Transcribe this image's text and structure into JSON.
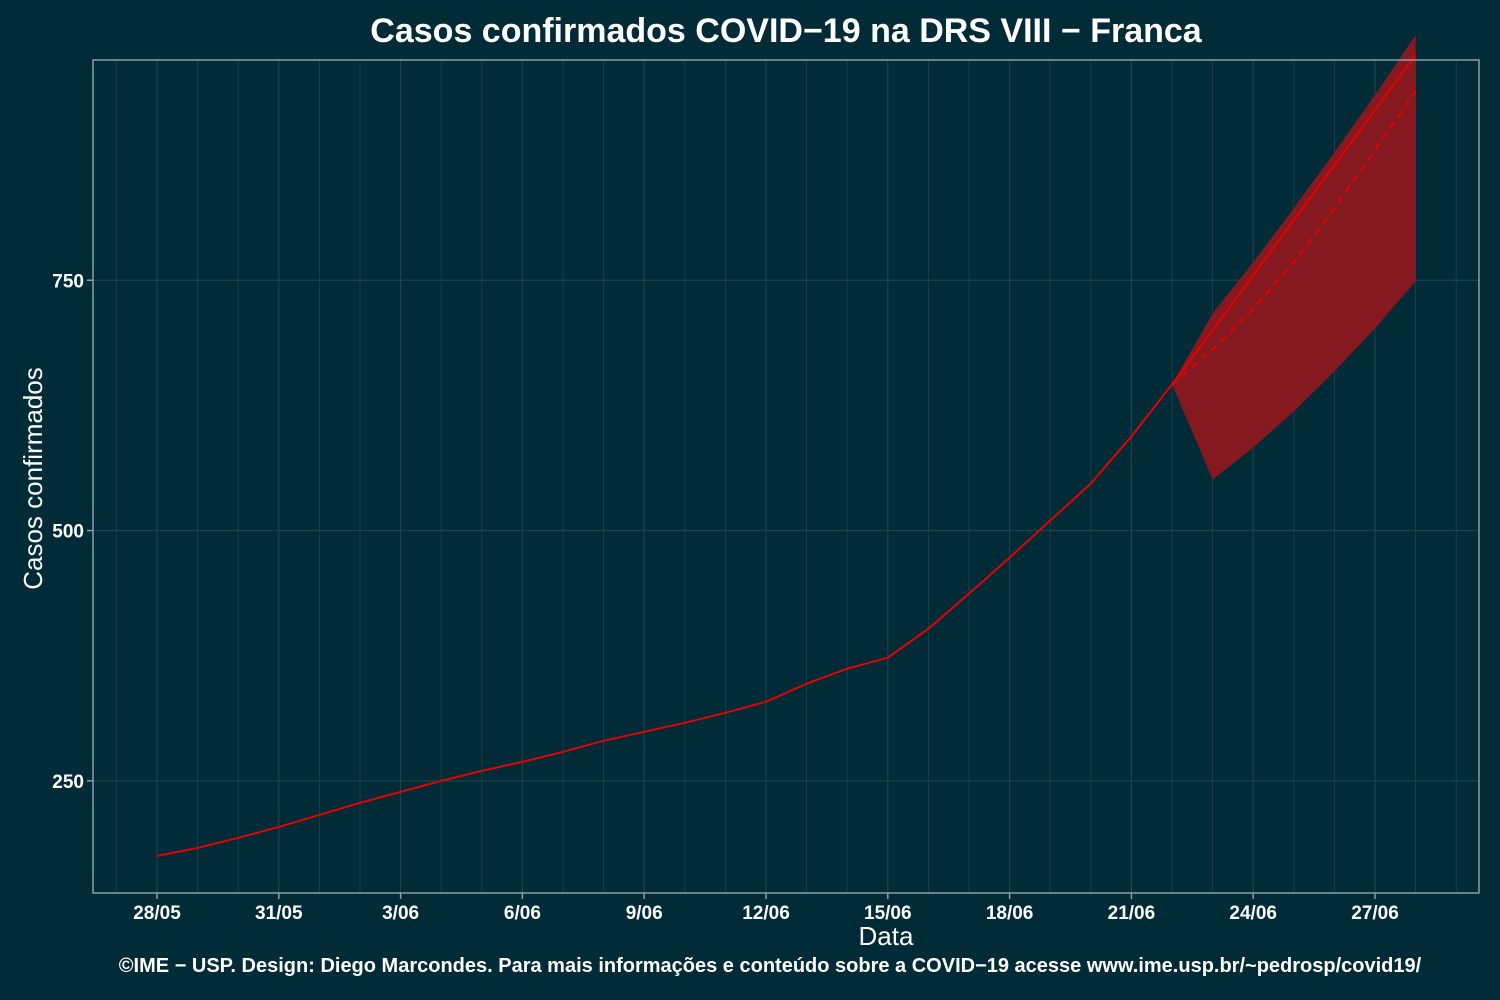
{
  "chart_data": {
    "type": "line",
    "title": "Casos confirmados COVID−19 na DRS VIII − Franca",
    "xlabel": "Data",
    "ylabel": "Casos confirmados",
    "footer": "©IME − USP. Design: Diego Marcondes. Para mais informações e conteúdo sobre a COVID−19 acesse www.ime.usp.br/~pedrosp/covid19/",
    "x_tick_labels": [
      "28/05",
      "31/05",
      "3/06",
      "6/06",
      "9/06",
      "12/06",
      "15/06",
      "18/06",
      "21/06",
      "24/06",
      "27/06"
    ],
    "y_ticks": [
      250,
      500,
      750
    ],
    "ylim": [
      138,
      970
    ],
    "grid": true,
    "colors": {
      "background": "#022b38",
      "line": "#e60000",
      "band": "#861820",
      "grid": "#1b4350",
      "frame": "#8aa0a6"
    },
    "series": [
      {
        "x": [
          "28/05",
          "29/05",
          "30/05",
          "31/05",
          "1/06",
          "2/06",
          "3/06",
          "4/06",
          "5/06",
          "6/06",
          "7/06",
          "8/06",
          "9/06",
          "10/06",
          "11/06",
          "12/06",
          "13/06",
          "14/06",
          "15/06",
          "16/06",
          "17/06",
          "18/06",
          "19/06",
          "20/06",
          "21/06",
          "22/06"
        ],
        "values": [
          175,
          183,
          193,
          204,
          216,
          228,
          239,
          250,
          260,
          269,
          279,
          290,
          299,
          308,
          318,
          329,
          347,
          362,
          373,
          402,
          437,
          473,
          510,
          547,
          594,
          646
        ]
      },
      {
        "style": "solid",
        "x": [
          "22/06",
          "23/06",
          "24/06",
          "25/06",
          "26/06",
          "27/06",
          "28/06"
        ],
        "values": [
          646,
          700,
          755,
          810,
          865,
          920,
          975
        ]
      },
      {
        "style": "dashed",
        "x": [
          "22/06",
          "23/06",
          "24/06",
          "25/06",
          "26/06",
          "27/06",
          "28/06"
        ],
        "values": [
          646,
          681,
          722,
          768,
          822,
          880,
          939
        ]
      }
    ],
    "band": {
      "x": [
        "22/06",
        "23/06",
        "24/06",
        "25/06",
        "26/06",
        "27/06",
        "28/06"
      ],
      "lower": [
        646,
        551,
        583,
        619,
        659,
        702,
        749
      ],
      "upper": [
        646,
        717,
        768,
        822,
        878,
        935,
        995
      ]
    }
  }
}
